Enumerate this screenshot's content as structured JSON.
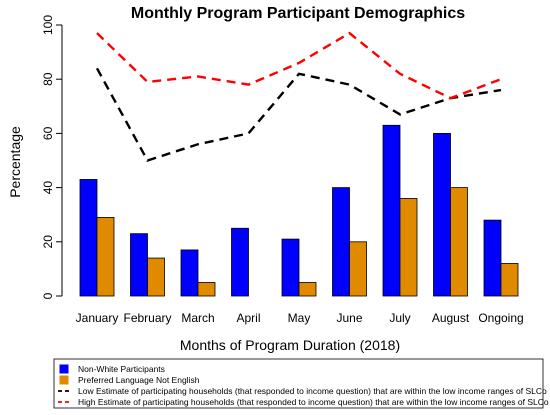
{
  "chart_data": {
    "type": "bar",
    "title": "Monthly Program Participant Demographics",
    "xlabel": "Months of Program Duration (2018)",
    "ylabel": "Percentage",
    "ylim": [
      0,
      100
    ],
    "yticks": [
      0,
      20,
      40,
      60,
      80,
      100
    ],
    "categories": [
      "January",
      "February",
      "March",
      "April",
      "May",
      "June",
      "July",
      "August",
      "Ongoing"
    ],
    "series": [
      {
        "name": "Non-White Participants",
        "kind": "bar",
        "color": "#0000ff",
        "values": [
          43,
          23,
          17,
          25,
          21,
          40,
          63,
          60,
          28
        ]
      },
      {
        "name": "Preferred Language Not English",
        "kind": "bar",
        "color": "#e08a00",
        "values": [
          29,
          14,
          5,
          0,
          5,
          20,
          36,
          40,
          12
        ]
      },
      {
        "name": "Low Estimate of participating households (that responded to income question) that are within the low income ranges of SLCo",
        "kind": "line",
        "color": "#000000",
        "dashed": true,
        "values": [
          84,
          50,
          56,
          60,
          82,
          78,
          67,
          73,
          76
        ]
      },
      {
        "name": "High Estimate of participating households (that responded to income question) that are within the low income ranges of SLCo",
        "kind": "line",
        "color": "#ff0000",
        "dashed": true,
        "values": [
          97,
          79,
          81,
          78,
          86,
          97,
          82,
          73,
          80
        ]
      }
    ],
    "grid": false,
    "legend_position": "bottom"
  }
}
